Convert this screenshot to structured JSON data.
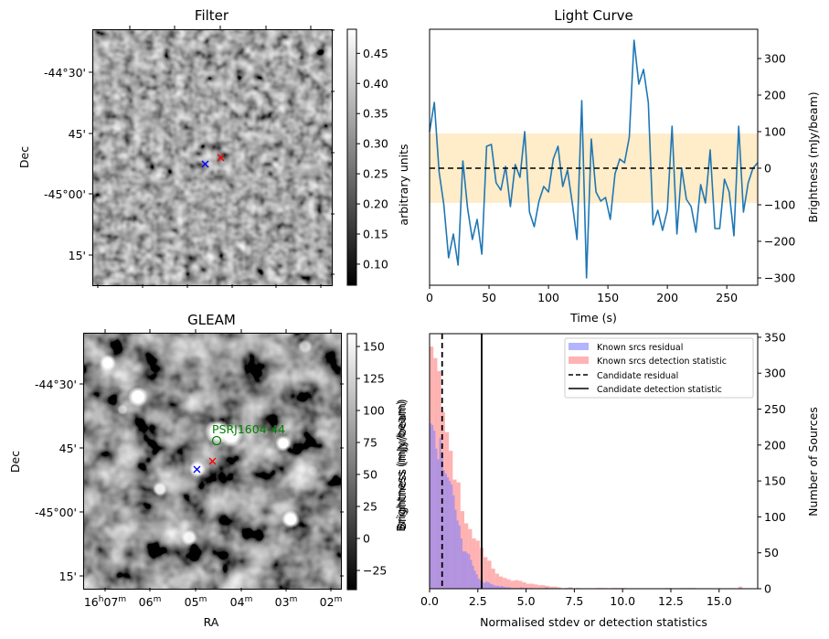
{
  "chart_data": [
    {
      "type": "heatmap",
      "title": "Filter",
      "xlabel": "",
      "ylabel": "Dec",
      "y_ticks": [
        "-44°30'",
        "45'",
        "-45°00'",
        "15'"
      ],
      "colorbar": {
        "label": "arbitrary units",
        "ticks": [
          "0.10",
          "0.15",
          "0.20",
          "0.25",
          "0.30",
          "0.35",
          "0.40",
          "0.45"
        ],
        "range": [
          0.065,
          0.49
        ],
        "colormap": "gray"
      },
      "markers": [
        {
          "name": "candidate-blue",
          "symbol": "x",
          "color": "#0000ff"
        },
        {
          "name": "candidate-red",
          "symbol": "x",
          "color": "#ff0000"
        }
      ]
    },
    {
      "type": "line",
      "title": "Light Curve",
      "xlabel": "Time (s)",
      "ylabel": "Brightness (mJy/beam)",
      "xlim": [
        0,
        276
      ],
      "ylim": [
        -320,
        380
      ],
      "x_ticks": [
        "0",
        "50",
        "100",
        "150",
        "200",
        "250"
      ],
      "y_ticks": [
        "−300",
        "−200",
        "−100",
        "0",
        "100",
        "200",
        "300"
      ],
      "y_axis_side": "right",
      "band": {
        "low": -95,
        "high": 95,
        "color": "#ffecc8"
      },
      "mean_line": {
        "value": 0,
        "style": "dashed",
        "color": "#000000"
      },
      "series": [
        {
          "name": "light-curve",
          "color": "#1f77b4",
          "x": [
            0,
            4,
            8,
            12,
            16,
            20,
            24,
            28,
            32,
            36,
            40,
            44,
            48,
            52,
            56,
            60,
            64,
            68,
            72,
            76,
            80,
            84,
            88,
            92,
            96,
            100,
            104,
            108,
            112,
            116,
            120,
            124,
            128,
            132,
            136,
            140,
            144,
            148,
            152,
            156,
            160,
            164,
            168,
            172,
            176,
            180,
            184,
            188,
            192,
            196,
            200,
            204,
            208,
            212,
            216,
            220,
            224,
            228,
            232,
            236,
            240,
            244,
            248,
            252,
            256,
            260,
            264,
            268,
            272,
            276
          ],
          "values": [
            100,
            180,
            -10,
            -100,
            -245,
            -180,
            -265,
            20,
            -110,
            -195,
            -140,
            -235,
            60,
            65,
            -40,
            -60,
            5,
            -105,
            10,
            -25,
            100,
            -120,
            -160,
            -90,
            -50,
            -65,
            25,
            60,
            -50,
            -5,
            -95,
            -195,
            185,
            -300,
            80,
            -65,
            -90,
            -80,
            -140,
            -15,
            25,
            15,
            85,
            350,
            230,
            270,
            180,
            -155,
            -115,
            -170,
            -115,
            115,
            -180,
            0,
            -85,
            -105,
            -175,
            -45,
            -95,
            50,
            -165,
            -165,
            -30,
            -65,
            -185,
            115,
            -120,
            -40,
            0,
            15
          ]
        }
      ]
    },
    {
      "type": "heatmap",
      "title": "GLEAM",
      "xlabel": "RA",
      "ylabel": "Dec",
      "x_ticks": [
        "16h07m",
        "06m",
        "05m",
        "04m",
        "03m",
        "02m"
      ],
      "y_ticks": [
        "-44°30'",
        "45'",
        "-45°00'",
        "15'"
      ],
      "colorbar": {
        "label": "Brightness (mJy/beam)",
        "ticks": [
          "−25",
          "0",
          "25",
          "50",
          "75",
          "100",
          "125",
          "150"
        ],
        "range": [
          -40,
          160
        ],
        "colormap": "gray"
      },
      "annotations": [
        {
          "text": "PSRJ1604-44",
          "color": "#008000",
          "marker": "o"
        }
      ],
      "markers": [
        {
          "name": "candidate-blue",
          "symbol": "x",
          "color": "#0000ff"
        },
        {
          "name": "candidate-red",
          "symbol": "x",
          "color": "#ff0000"
        }
      ]
    },
    {
      "type": "bar",
      "title": "",
      "xlabel": "Normalised stdev or detection statistics",
      "ylabel_left": "Brightness (mJy/beam)",
      "ylabel": "Number of Sources",
      "y_axis_side": "right",
      "xlim": [
        0,
        17
      ],
      "ylim": [
        0,
        355
      ],
      "x_ticks": [
        "0.0",
        "2.5",
        "5.0",
        "7.5",
        "10.0",
        "12.5",
        "15.0"
      ],
      "y_ticks": [
        "0",
        "50",
        "100",
        "150",
        "200",
        "250",
        "300",
        "350"
      ],
      "legend": {
        "placement": "top-right",
        "entries": [
          {
            "label": "Known srcs residual",
            "kind": "patch",
            "color": "#b3b3ff"
          },
          {
            "label": "Known srcs detection statistic",
            "kind": "patch",
            "color": "#ffb3b3"
          },
          {
            "label": "Candidate residual",
            "kind": "dashed-line",
            "color": "#000000"
          },
          {
            "label": "Candidate detection statistic",
            "kind": "solid-line",
            "color": "#000000"
          }
        ]
      },
      "series": [
        {
          "name": "Known srcs detection statistic",
          "color": "#ff7f7f",
          "alpha": 0.6,
          "bin_width": 0.2,
          "bin_start": 0,
          "values": [
            337,
            321,
            303,
            246,
            218,
            192,
            152,
            148,
            108,
            91,
            83,
            70,
            67,
            57,
            44,
            39,
            28,
            21,
            17,
            15,
            13,
            11,
            12,
            11,
            9,
            7,
            7,
            6,
            5,
            5,
            4,
            3,
            3,
            2,
            0,
            1,
            2,
            0,
            1,
            0,
            0,
            0,
            0,
            1,
            1,
            1,
            0,
            1,
            1,
            1,
            1,
            0,
            0,
            0,
            0,
            0,
            0,
            0,
            0,
            0,
            0,
            1,
            1,
            0,
            0,
            1,
            1,
            1,
            1,
            0,
            0,
            0,
            0,
            0,
            0,
            0,
            0,
            0,
            0,
            0,
            3,
            0,
            0
          ]
        },
        {
          "name": "Known srcs residual",
          "color": "#7f7fff",
          "alpha": 0.6,
          "bin_width": 0.1,
          "bin_start": 0,
          "values": [
            230,
            228,
            220,
            195,
            180,
            210,
            190,
            165,
            160,
            155,
            150,
            145,
            130,
            110,
            95,
            88,
            70,
            52,
            52,
            50,
            48,
            40,
            32,
            25,
            20,
            14,
            12,
            10,
            8,
            10,
            9,
            7,
            6,
            5,
            4,
            4,
            3,
            4,
            3,
            2,
            2,
            2,
            1,
            1,
            1,
            1,
            1,
            2,
            1,
            1,
            1,
            0,
            1,
            0,
            0,
            0,
            0,
            0,
            0,
            0,
            2,
            1,
            0,
            0,
            0,
            0,
            0,
            0,
            0,
            0
          ]
        }
      ],
      "vlines": [
        {
          "name": "Candidate residual",
          "x": 0.65,
          "style": "dashed"
        },
        {
          "name": "Candidate detection statistic",
          "x": 2.7,
          "style": "solid"
        }
      ]
    }
  ]
}
